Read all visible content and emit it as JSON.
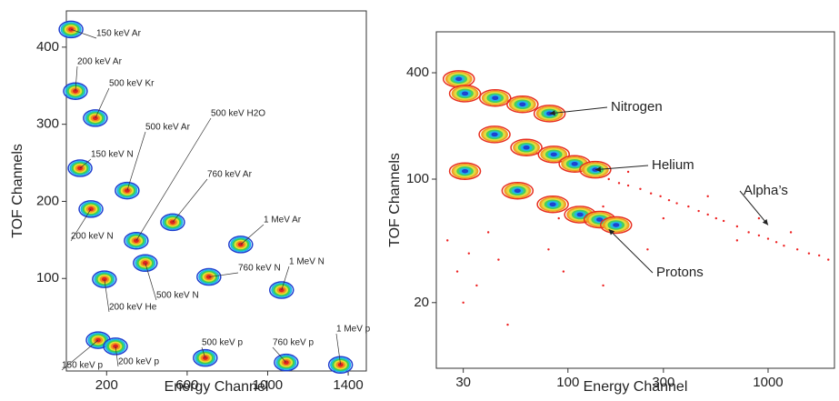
{
  "chart_data": [
    {
      "type": "contour",
      "x_label": "Energy Channel",
      "y_label": "TOF Channels",
      "xlim": [
        0,
        1490
      ],
      "ylim": [
        -20,
        447
      ],
      "xticks": [
        200,
        600,
        1000,
        1400
      ],
      "yticks": [
        100,
        200,
        300,
        400
      ],
      "log": false,
      "contour_colors": [
        "#1f3fd0",
        "#19b8e8",
        "#3cd050",
        "#e8e030",
        "#f08a20",
        "#e02020"
      ],
      "points": {
        "x": [
          23,
          45,
          144,
          68,
          302,
          122,
          347,
          528,
          866,
          392,
          708,
          1069,
          189,
          158,
          244,
          690,
          1092,
          1362
        ],
        "y": [
          423,
          343,
          308,
          243,
          214,
          190,
          149,
          173,
          144,
          120,
          102,
          85,
          99,
          20,
          12,
          -3,
          -9,
          -12
        ],
        "labels": [
          "150 keV Ar",
          "200 keV Ar",
          "500 keV Kr",
          "150 keV N",
          "500 keV Ar",
          "200 keV N",
          "500 keV H2O",
          "760 keV Ar",
          "1 MeV Ar",
          "500 keV N",
          "760 keV N",
          "1 MeV N",
          "200 keV He",
          "150 keV p",
          "200 keV p",
          "500 keV p",
          "760 keV p",
          "1 MeV p"
        ]
      }
    },
    {
      "type": "contour",
      "x_label": "Energy Channel",
      "y_label": "TOF Channels",
      "xlim": [
        22,
        2146
      ],
      "ylim": [
        8.5,
        682
      ],
      "xticks": [
        30,
        100,
        300,
        1000
      ],
      "yticks": [
        20,
        100,
        400
      ],
      "log": true,
      "contour_colors": [
        "#e83020",
        "#f0a020",
        "#e0e040",
        "#40d060",
        "#20b8e8",
        "#1f3fd0"
      ],
      "points": {
        "x": [
          28.5,
          30.6,
          43.3,
          59.3,
          81,
          43,
          62,
          85,
          108,
          137,
          30.6,
          56,
          84,
          115,
          144,
          174
        ],
        "y": [
          369,
          305,
          288,
          265,
          235,
          179,
          151,
          138,
          122,
          113,
          111,
          86,
          72,
          63,
          59,
          55
        ]
      },
      "scatter": {
        "color": "#ee2222",
        "x": [
          120,
          140,
          160,
          180,
          200,
          230,
          260,
          290,
          320,
          350,
          400,
          450,
          500,
          550,
          600,
          700,
          800,
          900,
          1000,
          1100,
          1200,
          1400,
          1600,
          1800,
          2000,
          300,
          500,
          700,
          900,
          1300,
          60,
          70,
          90,
          25,
          28,
          32,
          35,
          40,
          45,
          30,
          50,
          80,
          150,
          250,
          150,
          200,
          95
        ],
        "y": [
          110,
          105,
          100,
          95,
          92,
          88,
          83,
          80,
          76,
          73,
          70,
          66,
          63,
          60,
          58,
          54,
          50,
          48,
          46,
          44,
          42,
          40,
          38,
          37,
          35,
          60,
          80,
          45,
          60,
          50,
          150,
          140,
          60,
          45,
          30,
          38,
          25,
          50,
          35,
          20,
          15,
          40,
          25,
          40,
          70,
          110,
          30
        ]
      },
      "annotations": [
        {
          "text": "Nitrogen",
          "x": 81,
          "y": 235
        },
        {
          "text": "Helium",
          "x": 137,
          "y": 113
        },
        {
          "text": "Alpha’s",
          "x": 1000,
          "y": 55
        },
        {
          "text": "Protons",
          "x": 160,
          "y": 52
        }
      ]
    }
  ]
}
